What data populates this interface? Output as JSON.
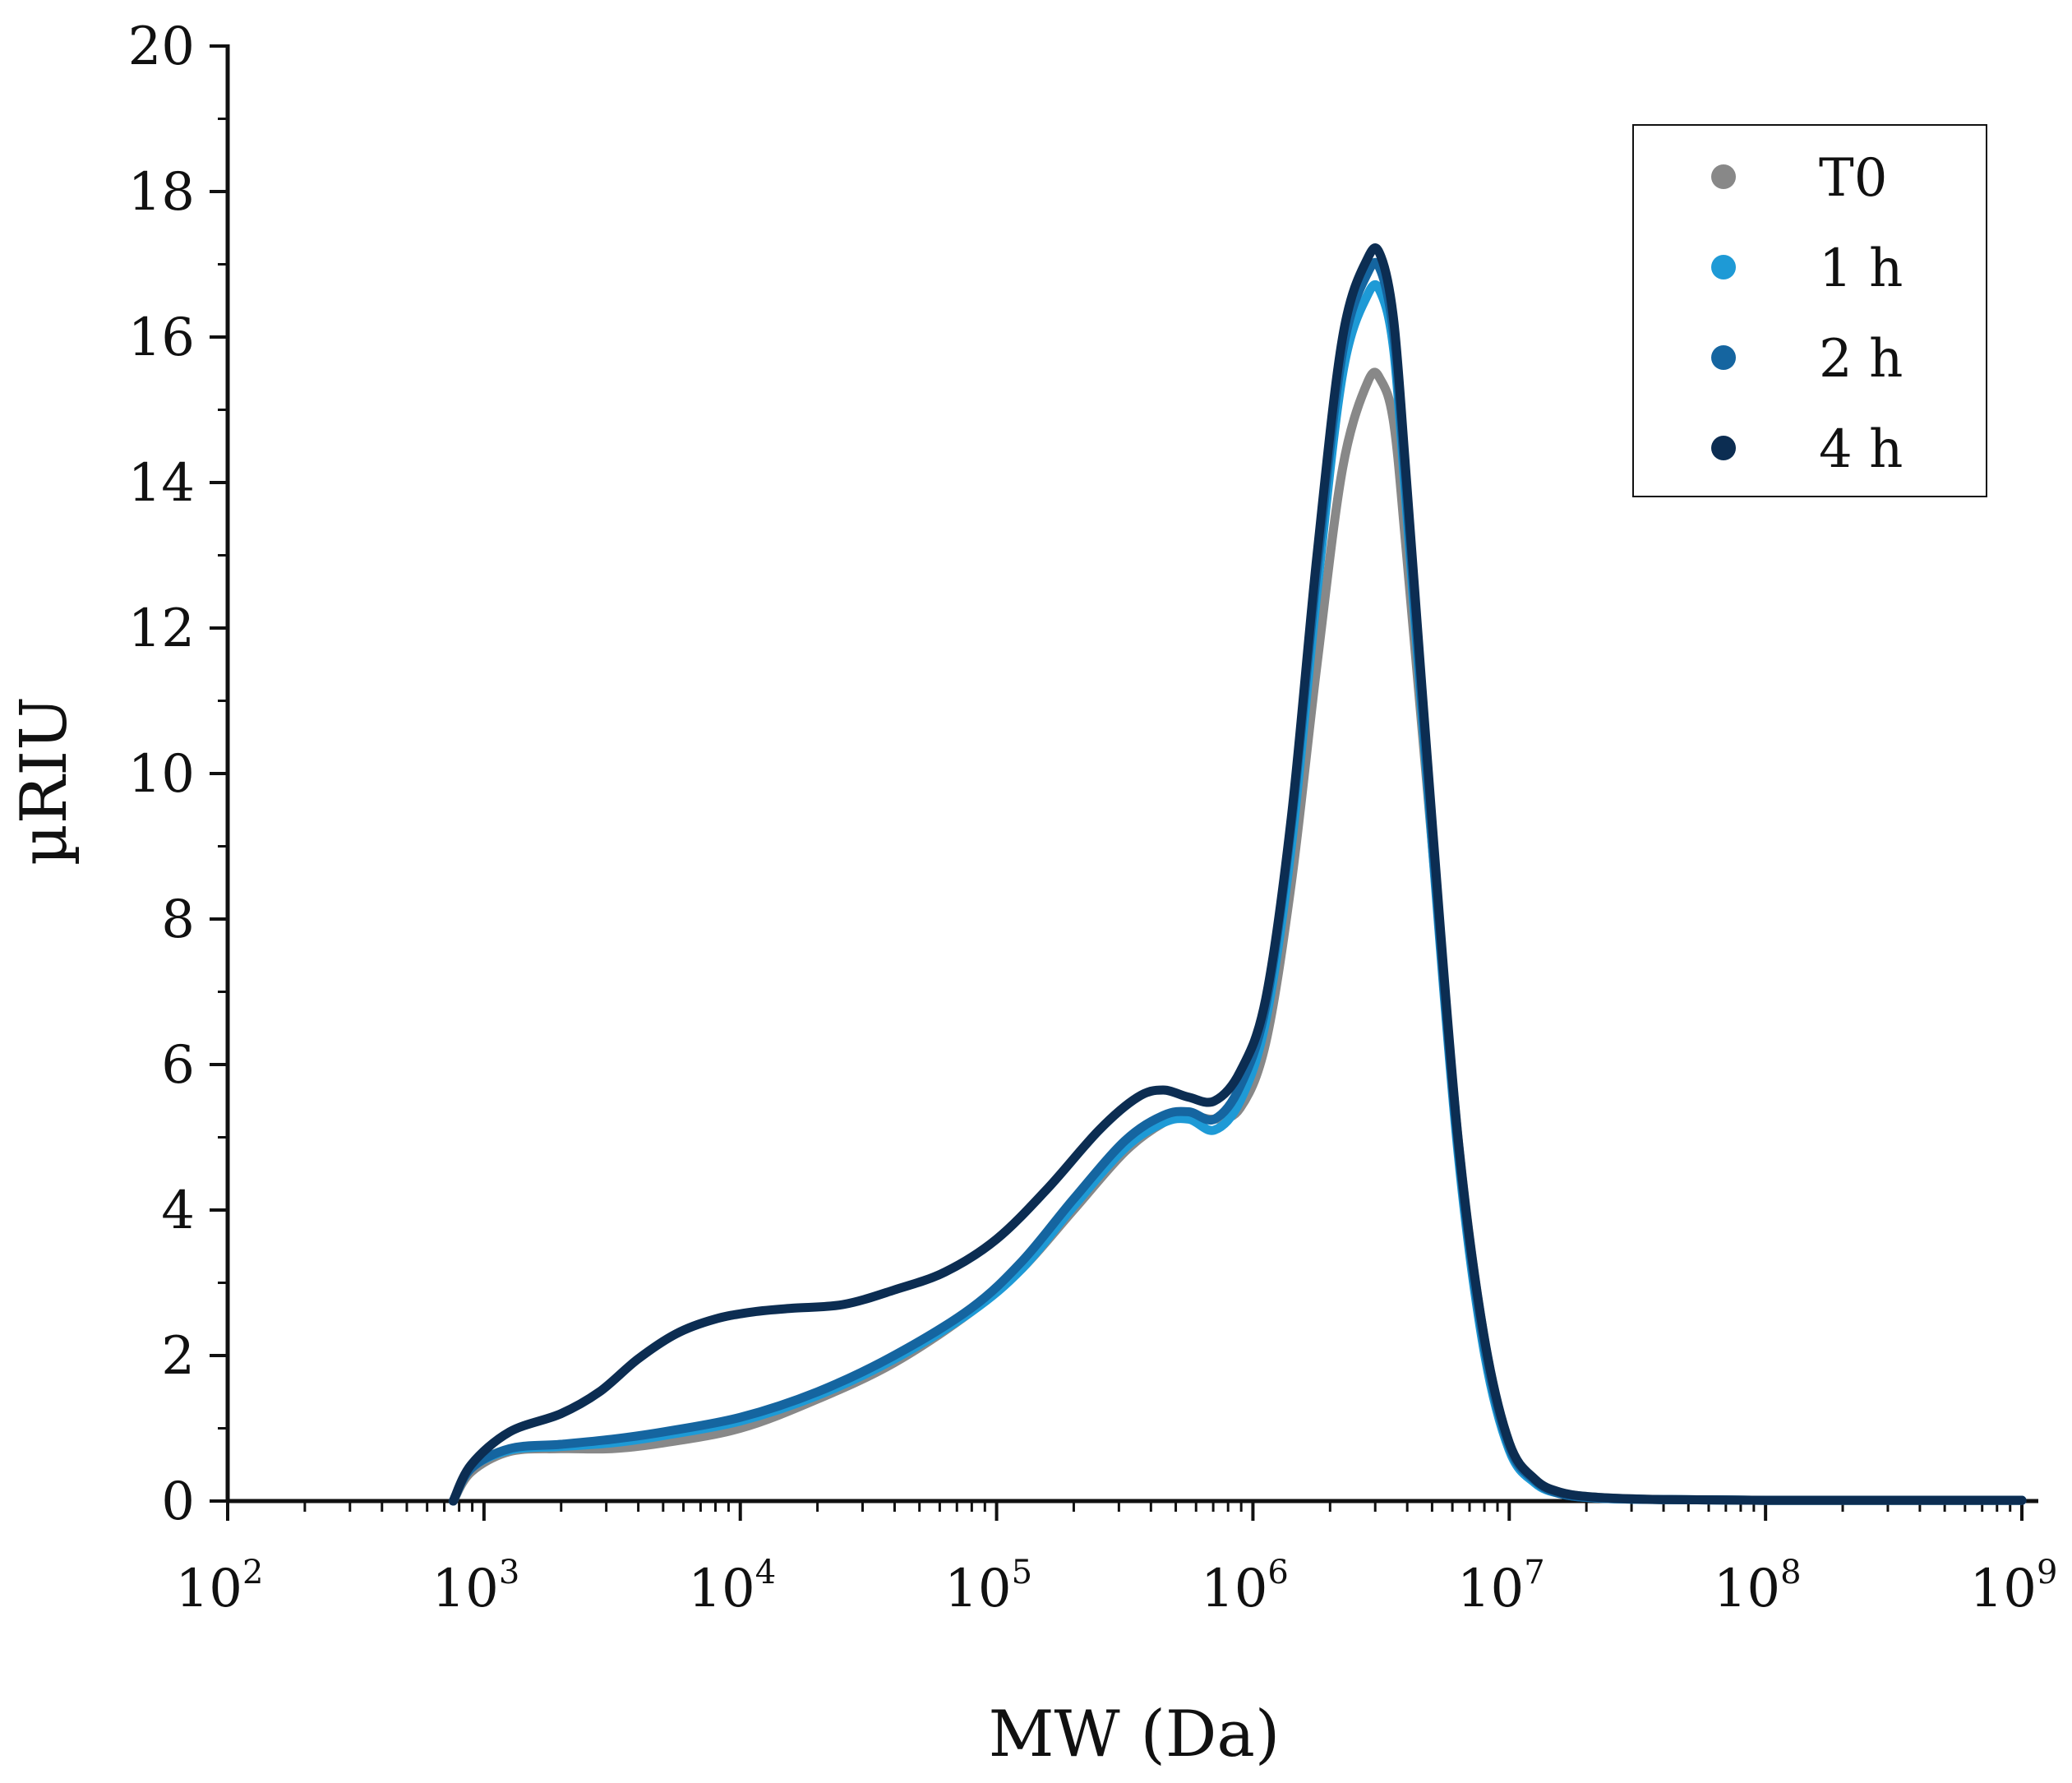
{
  "chart_data": {
    "type": "line",
    "title": "",
    "xlabel": "MW (Da)",
    "ylabel": "µRIU",
    "xscale": "log",
    "x_exp_range": [
      2,
      9
    ],
    "ylim": [
      0,
      20
    ],
    "x_ticks": [
      {
        "base": "10",
        "exp": "2"
      },
      {
        "base": "10",
        "exp": "3"
      },
      {
        "base": "10",
        "exp": "4"
      },
      {
        "base": "10",
        "exp": "5"
      },
      {
        "base": "10",
        "exp": "6"
      },
      {
        "base": "10",
        "exp": "7"
      },
      {
        "base": "10",
        "exp": "8"
      },
      {
        "base": "10",
        "exp": "9"
      }
    ],
    "y_ticks": [
      "0",
      "2",
      "4",
      "6",
      "8",
      "10",
      "12",
      "14",
      "16",
      "18",
      "20"
    ],
    "legend_position": "top-right",
    "grid": false,
    "series": [
      {
        "name": "T0",
        "color": "#888888",
        "x_log10": [
          2.88,
          2.95,
          3.1,
          3.3,
          3.5,
          3.7,
          4.0,
          4.3,
          4.6,
          4.9,
          5.1,
          5.3,
          5.5,
          5.65,
          5.75,
          5.85,
          5.95,
          6.05,
          6.15,
          6.25,
          6.35,
          6.45,
          6.5,
          6.55,
          6.6,
          6.7,
          6.8,
          6.9,
          7.0,
          7.1,
          7.2,
          7.35,
          7.6,
          8.0,
          8.5,
          9.0
        ],
        "y": [
          0.0,
          0.4,
          0.68,
          0.72,
          0.72,
          0.8,
          1.0,
          1.4,
          1.9,
          2.6,
          3.2,
          4.0,
          4.8,
          5.2,
          5.3,
          5.25,
          5.4,
          6.3,
          8.5,
          11.5,
          14.2,
          15.4,
          15.4,
          14.8,
          13.0,
          9.0,
          5.0,
          2.3,
          0.8,
          0.3,
          0.12,
          0.05,
          0.02,
          0.01,
          0.01,
          0.01
        ]
      },
      {
        "name": "1 h",
        "color": "#1e9ad6",
        "x_log10": [
          2.88,
          2.95,
          3.1,
          3.3,
          3.5,
          3.7,
          4.0,
          4.3,
          4.6,
          4.9,
          5.1,
          5.3,
          5.5,
          5.65,
          5.75,
          5.85,
          5.95,
          6.05,
          6.15,
          6.25,
          6.35,
          6.45,
          6.5,
          6.55,
          6.6,
          6.7,
          6.8,
          6.9,
          7.0,
          7.1,
          7.2,
          7.35,
          7.6,
          8.0,
          8.5,
          9.0
        ],
        "y": [
          0.0,
          0.45,
          0.7,
          0.75,
          0.8,
          0.9,
          1.1,
          1.45,
          1.95,
          2.6,
          3.2,
          4.05,
          4.85,
          5.2,
          5.25,
          5.1,
          5.5,
          6.6,
          9.0,
          12.5,
          15.5,
          16.6,
          16.6,
          15.8,
          13.6,
          9.0,
          4.8,
          2.1,
          0.7,
          0.25,
          0.1,
          0.04,
          0.02,
          0.01,
          0.01,
          0.01
        ]
      },
      {
        "name": "2 h",
        "color": "#1565a0",
        "x_log10": [
          2.88,
          2.95,
          3.1,
          3.3,
          3.5,
          3.7,
          4.0,
          4.3,
          4.6,
          4.9,
          5.1,
          5.3,
          5.5,
          5.65,
          5.75,
          5.85,
          5.95,
          6.05,
          6.15,
          6.25,
          6.35,
          6.45,
          6.5,
          6.55,
          6.6,
          6.7,
          6.8,
          6.9,
          7.0,
          7.1,
          7.2,
          7.35,
          7.6,
          8.0,
          8.5,
          9.0
        ],
        "y": [
          0.0,
          0.45,
          0.72,
          0.78,
          0.85,
          0.95,
          1.15,
          1.5,
          2.0,
          2.65,
          3.3,
          4.15,
          4.95,
          5.3,
          5.35,
          5.25,
          5.7,
          6.8,
          9.3,
          12.8,
          15.8,
          16.9,
          16.9,
          16.0,
          13.8,
          9.1,
          4.9,
          2.2,
          0.75,
          0.28,
          0.1,
          0.04,
          0.02,
          0.01,
          0.01,
          0.01
        ]
      },
      {
        "name": "4 h",
        "color": "#0c2d52",
        "x_log10": [
          2.88,
          2.95,
          3.1,
          3.3,
          3.45,
          3.6,
          3.75,
          3.9,
          4.05,
          4.2,
          4.4,
          4.6,
          4.8,
          5.0,
          5.2,
          5.4,
          5.55,
          5.65,
          5.75,
          5.85,
          5.95,
          6.05,
          6.15,
          6.25,
          6.35,
          6.45,
          6.5,
          6.55,
          6.6,
          6.7,
          6.8,
          6.9,
          7.0,
          7.1,
          7.2,
          7.35,
          7.6,
          8.0,
          8.5,
          9.0
        ],
        "y": [
          0.0,
          0.5,
          0.95,
          1.2,
          1.5,
          1.95,
          2.3,
          2.5,
          2.6,
          2.65,
          2.7,
          2.9,
          3.15,
          3.6,
          4.3,
          5.1,
          5.55,
          5.65,
          5.55,
          5.5,
          5.9,
          6.9,
          9.4,
          13.0,
          16.0,
          17.1,
          17.1,
          16.2,
          14.0,
          9.3,
          5.0,
          2.3,
          0.8,
          0.3,
          0.12,
          0.05,
          0.02,
          0.01,
          0.01,
          0.01
        ]
      }
    ]
  }
}
